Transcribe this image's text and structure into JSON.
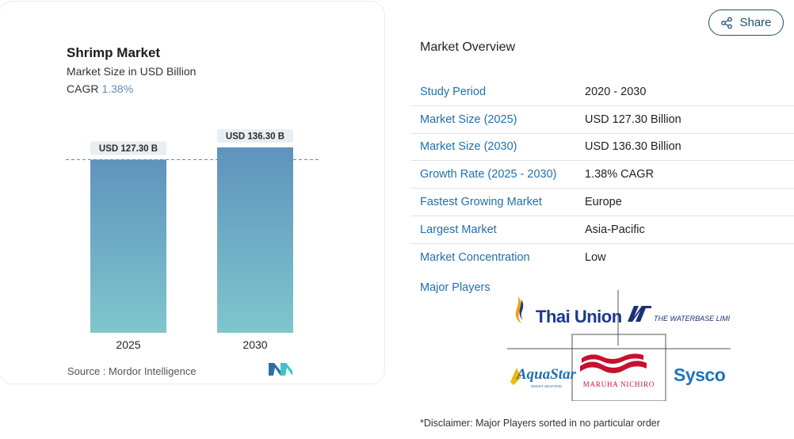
{
  "card": {
    "title": "Shrimp Market",
    "subtitle": "Market Size in USD Billion",
    "cagr_label": "CAGR",
    "cagr_value": "1.38%",
    "source": "Source :  Mordor Intelligence"
  },
  "chart_data": {
    "type": "bar",
    "categories": [
      "2025",
      "2030"
    ],
    "values": [
      127.3,
      136.3
    ],
    "data_labels": [
      "USD 127.30 B",
      "USD 136.30 B"
    ],
    "title": "Shrimp Market",
    "subtitle": "Market Size in USD Billion",
    "xlabel": "",
    "ylabel": "",
    "ylim": [
      0,
      145
    ],
    "grid": false,
    "reference_line": 127.3,
    "colors": {
      "bar_top": "#5f93bd",
      "bar_bottom": "#7fc6cd",
      "reference": "#5a8fb6"
    }
  },
  "share": {
    "label": "Share",
    "icon": "share-icon"
  },
  "overview": {
    "title": "Market Overview",
    "rows": [
      {
        "label": "Study Period",
        "value": "2020 - 2030"
      },
      {
        "label": "Market Size (2025)",
        "value": "USD 127.30 Billion"
      },
      {
        "label": "Market Size (2030)",
        "value": "USD 136.30 Billion"
      },
      {
        "label": "Growth Rate (2025 - 2030)",
        "value": "1.38% CAGR"
      },
      {
        "label": "Fastest Growing Market",
        "value": "Europe"
      },
      {
        "label": "Largest Market",
        "value": "Asia-Pacific"
      },
      {
        "label": "Market Concentration",
        "value": "Low"
      }
    ],
    "players_label": "Major Players",
    "players": [
      {
        "name": "Thai Union",
        "color": "#1a3a8a"
      },
      {
        "name": "THE WATERBASE LIMITED",
        "color": "#1a2f7a"
      },
      {
        "name": "AquaStar",
        "tagline": "SMART SEAFOOD",
        "color": "#1e6fb5"
      },
      {
        "name": "MARUHA NICHIRO",
        "color": "#c8102e"
      },
      {
        "name": "Sysco",
        "color": "#1b75bc"
      }
    ],
    "disclaimer": "*Disclaimer: Major Players sorted in no particular order"
  },
  "colors": {
    "accent": "#1f6fb0",
    "cagr": "#5a8fba",
    "share_border": "#1f4f6e"
  }
}
